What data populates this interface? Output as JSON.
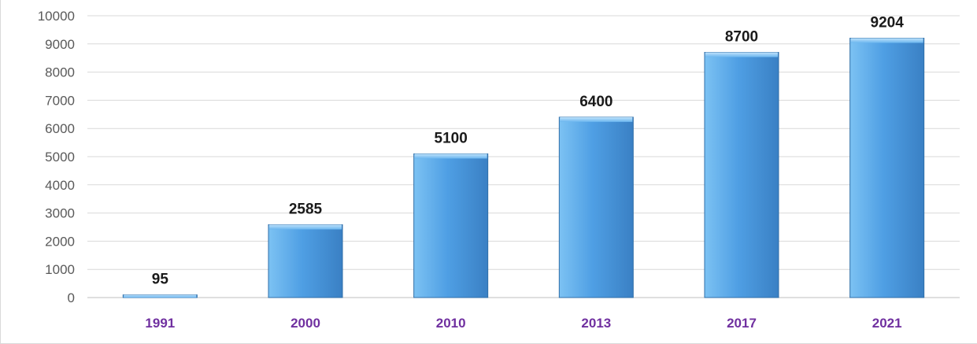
{
  "chart_data": {
    "type": "bar",
    "categories": [
      "1991",
      "2000",
      "2010",
      "2013",
      "2017",
      "2021"
    ],
    "values": [
      95,
      2585,
      5100,
      6400,
      8700,
      9204
    ],
    "data_labels": [
      "95",
      "2585",
      "5100",
      "6400",
      "8700",
      "9204"
    ],
    "yticks": [
      "0",
      "1000",
      "2000",
      "3000",
      "4000",
      "5000",
      "6000",
      "7000",
      "8000",
      "9000",
      "10000"
    ],
    "ylim": [
      0,
      10000
    ],
    "grid": true,
    "legend": "none",
    "title": "",
    "xlabel": "",
    "ylabel": ""
  },
  "colors": {
    "bar_top": "#7cc2f3",
    "bar_mid": "#4f9fe4",
    "bar_bottom": "#3a80c4",
    "bar_edge": "#2f6ea8",
    "x_tick_label": "#7030a0",
    "y_tick_label": "#595959",
    "gridline": "#d9d9d9"
  }
}
